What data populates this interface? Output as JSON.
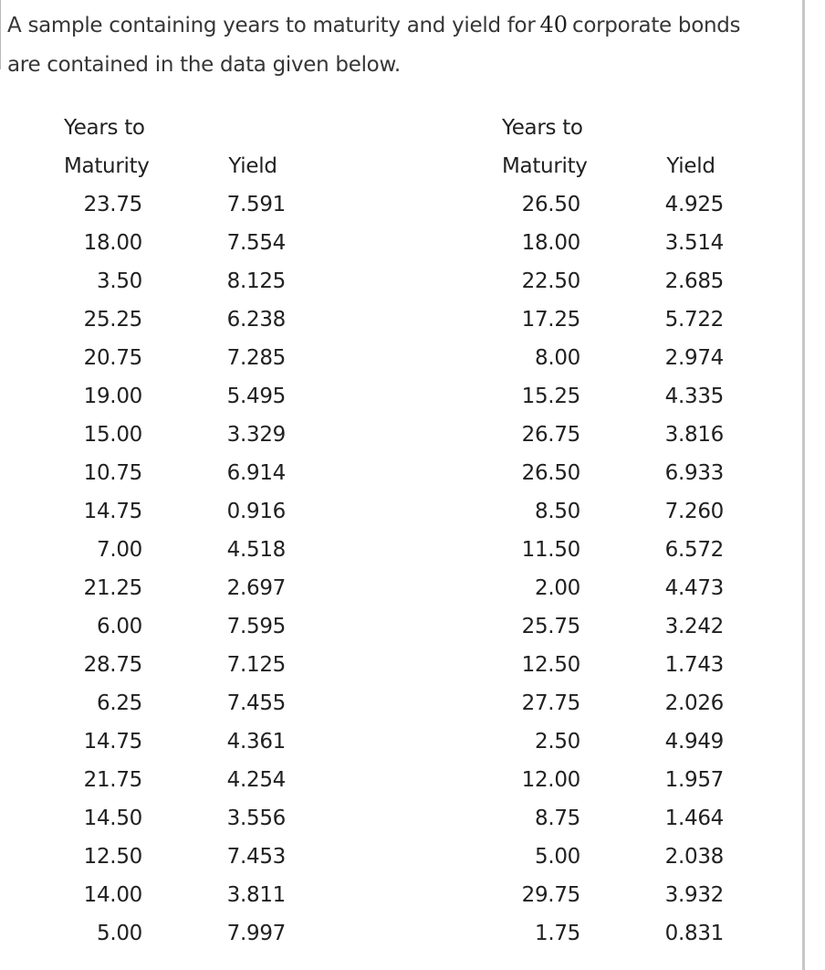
{
  "intro": {
    "text_before_number": "A sample containing years to maturity and yield for",
    "bond_count": "40",
    "text_after_number": "corporate bonds",
    "line2": "are contained in the data given below."
  },
  "tables": [
    {
      "header": {
        "line1": "Years to",
        "line2": "Maturity",
        "yield": "Yield"
      },
      "rows": [
        {
          "maturity": "23.75",
          "yield": "7.591"
        },
        {
          "maturity": "18.00",
          "yield": "7.554"
        },
        {
          "maturity": "3.50",
          "yield": "8.125"
        },
        {
          "maturity": "25.25",
          "yield": "6.238"
        },
        {
          "maturity": "20.75",
          "yield": "7.285"
        },
        {
          "maturity": "19.00",
          "yield": "5.495"
        },
        {
          "maturity": "15.00",
          "yield": "3.329"
        },
        {
          "maturity": "10.75",
          "yield": "6.914"
        },
        {
          "maturity": "14.75",
          "yield": "0.916"
        },
        {
          "maturity": "7.00",
          "yield": "4.518"
        },
        {
          "maturity": "21.25",
          "yield": "2.697"
        },
        {
          "maturity": "6.00",
          "yield": "7.595"
        },
        {
          "maturity": "28.75",
          "yield": "7.125"
        },
        {
          "maturity": "6.25",
          "yield": "7.455"
        },
        {
          "maturity": "14.75",
          "yield": "4.361"
        },
        {
          "maturity": "21.75",
          "yield": "4.254"
        },
        {
          "maturity": "14.50",
          "yield": "3.556"
        },
        {
          "maturity": "12.50",
          "yield": "7.453"
        },
        {
          "maturity": "14.00",
          "yield": "3.811"
        },
        {
          "maturity": "5.00",
          "yield": "7.997"
        }
      ]
    },
    {
      "header": {
        "line1": "Years to",
        "line2": "Maturity",
        "yield": "Yield"
      },
      "rows": [
        {
          "maturity": "26.50",
          "yield": "4.925"
        },
        {
          "maturity": "18.00",
          "yield": "3.514"
        },
        {
          "maturity": "22.50",
          "yield": "2.685"
        },
        {
          "maturity": "17.25",
          "yield": "5.722"
        },
        {
          "maturity": "8.00",
          "yield": "2.974"
        },
        {
          "maturity": "15.25",
          "yield": "4.335"
        },
        {
          "maturity": "26.75",
          "yield": "3.816"
        },
        {
          "maturity": "26.50",
          "yield": "6.933"
        },
        {
          "maturity": "8.50",
          "yield": "7.260"
        },
        {
          "maturity": "11.50",
          "yield": "6.572"
        },
        {
          "maturity": "2.00",
          "yield": "4.473"
        },
        {
          "maturity": "25.75",
          "yield": "3.242"
        },
        {
          "maturity": "12.50",
          "yield": "1.743"
        },
        {
          "maturity": "27.75",
          "yield": "2.026"
        },
        {
          "maturity": "2.50",
          "yield": "4.949"
        },
        {
          "maturity": "12.00",
          "yield": "1.957"
        },
        {
          "maturity": "8.75",
          "yield": "1.464"
        },
        {
          "maturity": "5.00",
          "yield": "2.038"
        },
        {
          "maturity": "29.75",
          "yield": "3.932"
        },
        {
          "maturity": "1.75",
          "yield": "0.831"
        }
      ]
    }
  ]
}
